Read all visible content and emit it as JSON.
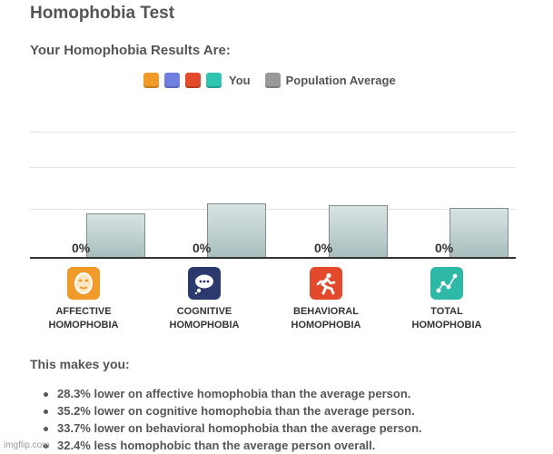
{
  "page": {
    "title": "Homophobia Test",
    "subtitle": "Your Homophobia Results Are:"
  },
  "legend": {
    "you_label": "You",
    "average_label": "Population Average",
    "you_colors": [
      "#f09a2a",
      "#6e7fe0",
      "#e34a2c",
      "#2ec4b0"
    ],
    "average_color": "#9a9a9a"
  },
  "chart_data": {
    "type": "bar",
    "categories": [
      "AFFECTIVE HOMOPHOBIA",
      "COGNITIVE HOMOPHOBIA",
      "BEHAVIORAL HOMOPHOBIA",
      "TOTAL HOMOPHOBIA"
    ],
    "series": [
      {
        "name": "You",
        "values": [
          0,
          0,
          0,
          0
        ]
      },
      {
        "name": "Population Average",
        "values": [
          28.3,
          35.2,
          33.7,
          32.4
        ]
      }
    ],
    "data_labels": [
      "0%",
      "0%",
      "0%",
      "0%"
    ],
    "ylim": [
      0,
      100
    ],
    "grid": true
  },
  "categories": [
    {
      "line1": "AFFECTIVE",
      "line2": "HOMOPHOBIA",
      "icon": "mask-icon",
      "color": "#f09a2a"
    },
    {
      "line1": "COGNITIVE",
      "line2": "HOMOPHOBIA",
      "icon": "thought-bubble-icon",
      "color": "#2b3a6e"
    },
    {
      "line1": "BEHAVIORAL",
      "line2": "HOMOPHOBIA",
      "icon": "running-person-icon",
      "color": "#e34a2c"
    },
    {
      "line1": "TOTAL",
      "line2": "HOMOPHOBIA",
      "icon": "line-graph-icon",
      "color": "#2eb8a6"
    }
  ],
  "summary": {
    "heading": "This makes you:",
    "items": [
      "28.3% lower on affective homophobia than the average person.",
      "35.2% lower on cognitive homophobia than the average person.",
      "33.7% lower on behavioral homophobia than the average person.",
      "32.4% less homophobic than the average person overall."
    ]
  },
  "watermark": "imgflip.com"
}
